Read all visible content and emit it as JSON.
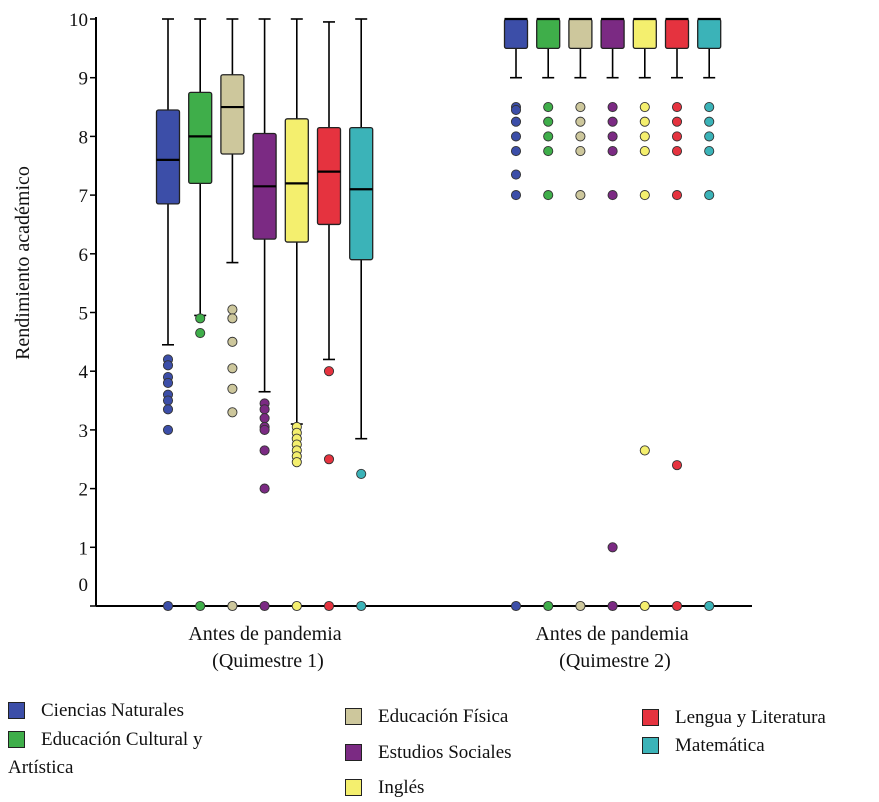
{
  "chart_data": {
    "type": "boxplot",
    "ylabel": "Rendimiento académico",
    "yticks": [
      0,
      1,
      2,
      3,
      4,
      5,
      6,
      7,
      8,
      9,
      10
    ],
    "ylim": [
      0,
      10
    ],
    "grid": false,
    "legend_position": "bottom",
    "groups": [
      {
        "label": "Antes de pandemia\n(Quimestre 1)"
      },
      {
        "label": "Antes de pandemia\n(Quimestre 2)"
      }
    ],
    "series": [
      {
        "name": "Ciencias Naturales",
        "color": "#3c4ea8",
        "boxes": [
          {
            "whisker_low": 4.45,
            "q1": 6.85,
            "median": 7.6,
            "q3": 8.45,
            "whisker_high": 10,
            "outliers": [
              4.2,
              4.1,
              3.9,
              3.8,
              3.6,
              3.5,
              3.35,
              3.0,
              0
            ]
          },
          {
            "whisker_low": 9.0,
            "q1": 9.5,
            "median": 10,
            "q3": 10,
            "whisker_high": 10,
            "outliers": [
              8.5,
              8.45,
              8.25,
              8.0,
              7.75,
              7.35,
              7.0,
              0
            ]
          }
        ]
      },
      {
        "name": "Educación Cultural y\nArtística",
        "color": "#3fae4a",
        "boxes": [
          {
            "whisker_low": 4.95,
            "q1": 7.2,
            "median": 8.0,
            "q3": 8.75,
            "whisker_high": 10,
            "outliers": [
              4.9,
              4.65,
              0
            ]
          },
          {
            "whisker_low": 9.0,
            "q1": 9.5,
            "median": 10,
            "q3": 10,
            "whisker_high": 10,
            "outliers": [
              8.5,
              8.25,
              8.0,
              7.75,
              7.0,
              0
            ]
          }
        ]
      },
      {
        "name": "Educación Física",
        "color": "#cdc79c",
        "boxes": [
          {
            "whisker_low": 5.85,
            "q1": 7.7,
            "median": 8.5,
            "q3": 9.05,
            "whisker_high": 10,
            "outliers": [
              5.05,
              4.9,
              4.5,
              4.05,
              3.7,
              3.3,
              0
            ]
          },
          {
            "whisker_low": 9.0,
            "q1": 9.5,
            "median": 10,
            "q3": 10,
            "whisker_high": 10,
            "outliers": [
              8.5,
              8.25,
              8.0,
              7.75,
              7.0,
              0
            ]
          }
        ]
      },
      {
        "name": "Estudios Sociales",
        "color": "#7b2a83",
        "boxes": [
          {
            "whisker_low": 3.65,
            "q1": 6.25,
            "median": 7.15,
            "q3": 8.05,
            "whisker_high": 10,
            "outliers": [
              3.45,
              3.35,
              3.2,
              3.05,
              3.0,
              2.65,
              2.0,
              0
            ]
          },
          {
            "whisker_low": 9.0,
            "q1": 9.5,
            "median": 10,
            "q3": 10,
            "whisker_high": 10,
            "outliers": [
              8.5,
              8.25,
              8.0,
              7.75,
              7.0,
              1.0,
              0
            ]
          }
        ]
      },
      {
        "name": "Inglés",
        "color": "#f4ef6e",
        "boxes": [
          {
            "whisker_low": 3.1,
            "q1": 6.2,
            "median": 7.2,
            "q3": 8.3,
            "whisker_high": 10,
            "outliers": [
              3.05,
              2.95,
              2.85,
              2.75,
              2.65,
              2.55,
              2.45,
              0
            ]
          },
          {
            "whisker_low": 9.0,
            "q1": 9.5,
            "median": 10,
            "q3": 10,
            "whisker_high": 10,
            "outliers": [
              8.5,
              8.25,
              8.0,
              7.75,
              7.0,
              2.65,
              0
            ]
          }
        ]
      },
      {
        "name": "Lengua y Literatura",
        "color": "#e5333f",
        "boxes": [
          {
            "whisker_low": 4.2,
            "q1": 6.5,
            "median": 7.4,
            "q3": 8.15,
            "whisker_high": 9.95,
            "outliers": [
              4.0,
              2.5,
              0
            ]
          },
          {
            "whisker_low": 9.0,
            "q1": 9.5,
            "median": 10,
            "q3": 10,
            "whisker_high": 10,
            "outliers": [
              8.5,
              8.25,
              8.0,
              7.75,
              7.0,
              2.4,
              0
            ]
          }
        ]
      },
      {
        "name": "Matemática",
        "color": "#3bb3b8",
        "boxes": [
          {
            "whisker_low": 2.85,
            "q1": 5.9,
            "median": 7.1,
            "q3": 8.15,
            "whisker_high": 10,
            "outliers": [
              2.25,
              0
            ]
          },
          {
            "whisker_low": 9.0,
            "q1": 9.5,
            "median": 10,
            "q3": 10,
            "whisker_high": 10,
            "outliers": [
              8.5,
              8.25,
              8.0,
              7.75,
              7.0,
              0
            ]
          }
        ]
      }
    ]
  }
}
